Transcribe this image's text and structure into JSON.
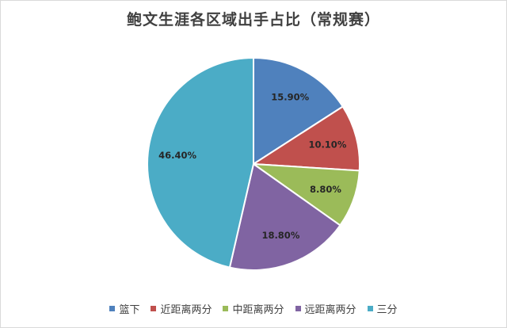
{
  "chart_data": {
    "type": "pie",
    "title": "鲍文生涯各区域出手占比（常规赛）",
    "categories": [
      "篮下",
      "近距离两分",
      "中距离两分",
      "远距离两分",
      "三分"
    ],
    "values": [
      15.9,
      10.1,
      8.8,
      18.8,
      46.4
    ],
    "value_labels": [
      "15.90%",
      "10.10%",
      "8.80%",
      "18.80%",
      "46.40%"
    ],
    "colors": [
      "#4f81bd",
      "#c0504d",
      "#9bbb59",
      "#8064a2",
      "#4bacc6"
    ],
    "legend_position": "bottom",
    "start_angle": "12 o'clock",
    "direction": "clockwise"
  }
}
